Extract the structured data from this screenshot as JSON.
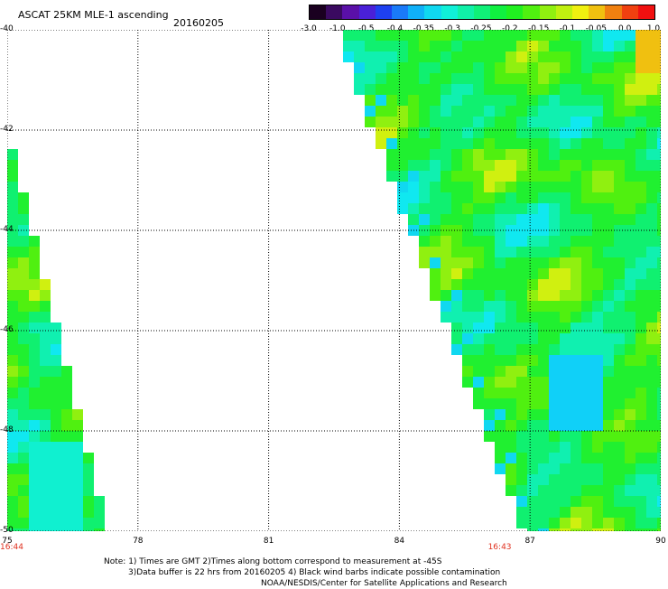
{
  "header": {
    "title": "ASCAT 25KM MLE-1 ascending",
    "date": "20160205"
  },
  "colorbar": {
    "ticks": [
      "-3.0",
      "-1.0",
      "-0.5",
      "-0.4",
      "-0.35",
      "-0.3",
      "-0.25",
      "-0.2",
      "-0.15",
      "-0.1",
      "-0.05",
      "0.0",
      "1.0"
    ],
    "colors": [
      "#1a0020",
      "#3a0a60",
      "#5a10a8",
      "#4a20d8",
      "#1e40f0",
      "#1a7af8",
      "#10b0f8",
      "#10d8f0",
      "#10f0d8",
      "#10f0a8",
      "#10f078",
      "#10f040",
      "#20f020",
      "#50f010",
      "#90f010",
      "#c0f010",
      "#f0f010",
      "#f0c010",
      "#f08010",
      "#f04010",
      "#f01010"
    ]
  },
  "map": {
    "lat_ticks": [
      "-40",
      "-42",
      "-44",
      "-46",
      "-48",
      "-50"
    ],
    "lon_ticks": [
      "75",
      "78",
      "81",
      "84",
      "87",
      "90"
    ],
    "lat_range": [
      -50,
      -40
    ],
    "lon_range": [
      75,
      90
    ],
    "pass_times": [
      {
        "label": "16:44",
        "lon": 75
      },
      {
        "label": "16:43",
        "lon": 86.2
      }
    ]
  },
  "notes": {
    "line1": "Note: 1) Times are GMT 2)Times along bottom correspond to measurement at -45S",
    "line2": "3)Data buffer is 22 hrs from 20160205 4) Black wind barbs indicate possible contamination",
    "line3": "NOAA/NESDIS/Center for Satellite Applications and Research"
  }
}
